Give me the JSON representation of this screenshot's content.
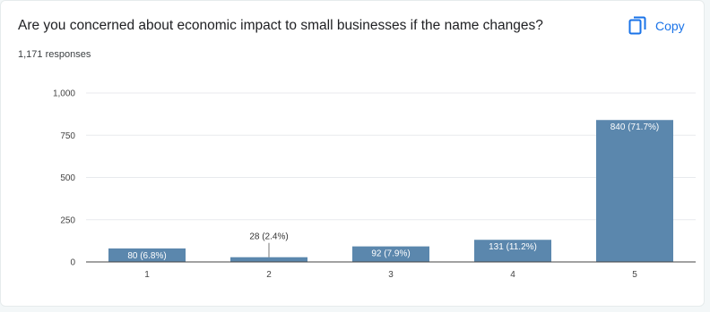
{
  "question": {
    "title": "Are you concerned about economic impact to small businesses if the name changes?",
    "responses": "1,171 responses"
  },
  "copy_button": {
    "label": "Copy",
    "icon": "copy-icon"
  },
  "colors": {
    "bar": "#5b87ad",
    "accent": "#1a73e8",
    "grid": "#e8eaed",
    "axis": "#444444"
  },
  "chart_data": {
    "type": "bar",
    "categories": [
      "1",
      "2",
      "3",
      "4",
      "5"
    ],
    "values": [
      80,
      28,
      92,
      131,
      840
    ],
    "data_labels": [
      "80 (6.8%)",
      "28 (2.4%)",
      "92 (7.9%)",
      "131 (11.2%)",
      "840 (71.7%)"
    ],
    "ylim": [
      0,
      1000
    ],
    "yticks": [
      0,
      250,
      500,
      750,
      1000
    ],
    "ytick_labels": [
      "0",
      "250",
      "500",
      "750",
      "1,000"
    ],
    "grid": true,
    "title": "",
    "xlabel": "",
    "ylabel": ""
  }
}
